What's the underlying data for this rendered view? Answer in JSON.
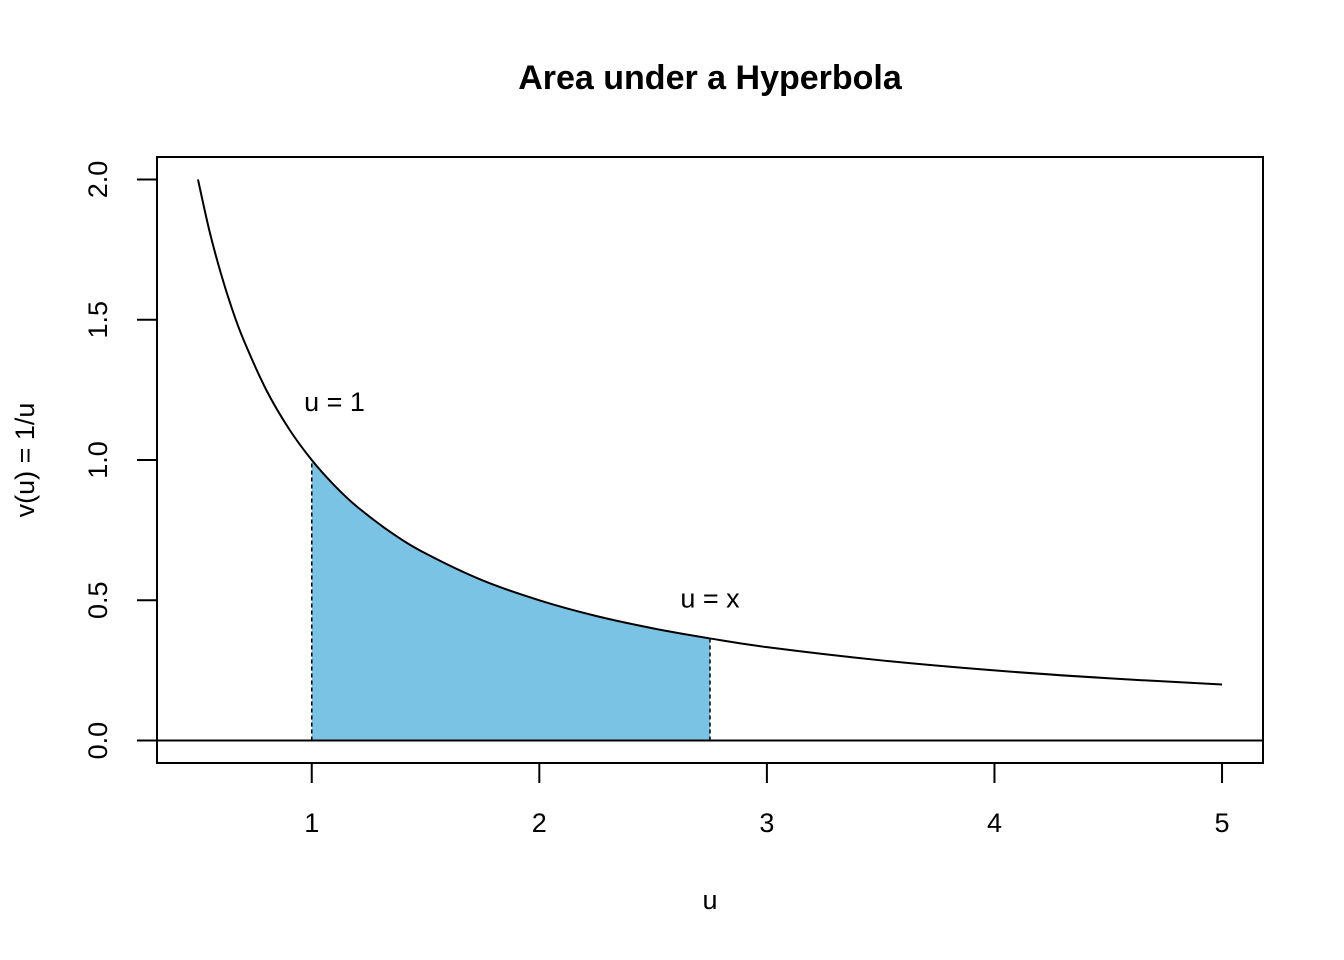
{
  "chart_data": {
    "type": "line",
    "title": "Area under a Hyperbola",
    "x_label": "u",
    "y_label": "v(u) = 1/u",
    "series": [
      {
        "color": "#000000",
        "x": [
          0.5,
          0.55,
          0.6,
          0.65,
          0.7,
          0.8,
          0.9,
          1,
          1.1,
          1.2,
          1.35,
          1.5,
          1.75,
          2,
          2.25,
          2.5,
          2.75,
          3,
          3.5,
          4,
          4.5,
          5
        ],
        "values": [
          2,
          1.818,
          1.667,
          1.538,
          1.429,
          1.25,
          1.111,
          1,
          0.909,
          0.833,
          0.741,
          0.667,
          0.571,
          0.5,
          0.444,
          0.4,
          0.364,
          0.333,
          0.286,
          0.25,
          0.222,
          0.2
        ]
      }
    ],
    "shaded": {
      "color": "#7bc3e4",
      "x": [
        1,
        1.1,
        1.2,
        1.35,
        1.5,
        1.75,
        2,
        2.25,
        2.5,
        2.75
      ],
      "values": [
        1,
        0.909,
        0.833,
        0.741,
        0.667,
        0.571,
        0.5,
        0.444,
        0.4,
        0.364
      ]
    },
    "hline": 0,
    "annotations": [
      {
        "text": "u = 1",
        "x": 1.1,
        "y": 1.2
      },
      {
        "text": "u = x",
        "x": 2.75,
        "y": 0.5
      }
    ],
    "xlim": [
      0.32,
      5.18
    ],
    "ylim": [
      -0.08,
      2.08
    ],
    "xticks": [
      1,
      2,
      3,
      4,
      5
    ],
    "yticks": [
      {
        "value": 0,
        "label": "0.0"
      },
      {
        "value": 0.5,
        "label": "0.5"
      },
      {
        "value": 1,
        "label": "1.0"
      },
      {
        "value": 1.5,
        "label": "1.5"
      },
      {
        "value": 2,
        "label": "2.0"
      }
    ]
  }
}
